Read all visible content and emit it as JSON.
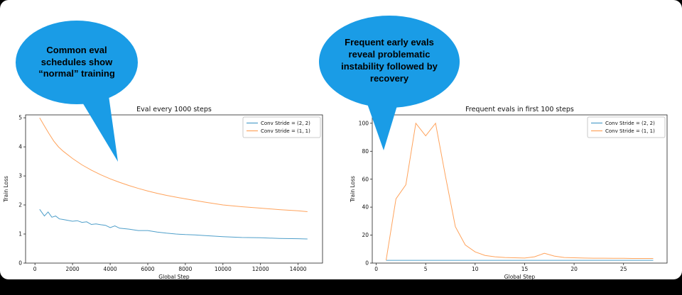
{
  "slide": {
    "background": "#000000",
    "surface": "#ffffff"
  },
  "bubbles": {
    "left": {
      "text": "Common eval schedules show “normal” training",
      "color": "#1a9ce6"
    },
    "right": {
      "text": "Frequent early evals reveal problematic instability followed by recovery",
      "color": "#1a9ce6"
    }
  },
  "chart_data": [
    {
      "type": "line",
      "title": "Eval every 1000 steps",
      "xlabel": "Global Step",
      "ylabel": "Train Loss",
      "xlim": [
        -500,
        15300
      ],
      "ylim": [
        0,
        5.1
      ],
      "xticks": [
        0,
        2000,
        4000,
        6000,
        8000,
        10000,
        12000,
        14000
      ],
      "yticks": [
        0,
        1,
        2,
        3,
        4,
        5
      ],
      "grid": false,
      "legend_position": "upper right",
      "series": [
        {
          "name": "Conv Stride =  (2, 2)",
          "color": "#4f9fca",
          "x": [
            250,
            500,
            700,
            900,
            1100,
            1300,
            1500,
            1750,
            2000,
            2250,
            2500,
            2750,
            3000,
            3250,
            3500,
            3750,
            4000,
            4250,
            4500,
            5000,
            5500,
            6000,
            6500,
            7000,
            7500,
            8000,
            8500,
            9000,
            10000,
            11000,
            12000,
            13000,
            14000,
            14500
          ],
          "y": [
            1.85,
            1.62,
            1.76,
            1.58,
            1.62,
            1.52,
            1.5,
            1.47,
            1.44,
            1.46,
            1.4,
            1.42,
            1.33,
            1.35,
            1.32,
            1.3,
            1.22,
            1.28,
            1.2,
            1.17,
            1.12,
            1.12,
            1.07,
            1.03,
            1.0,
            0.98,
            0.97,
            0.95,
            0.91,
            0.88,
            0.87,
            0.85,
            0.84,
            0.83
          ]
        },
        {
          "name": "Conv Stride =  (1, 1)",
          "color": "#ffa35c",
          "x": [
            250,
            500,
            750,
            1000,
            1250,
            1500,
            2000,
            2500,
            3000,
            3500,
            4000,
            4500,
            5000,
            5500,
            6000,
            6500,
            7000,
            7500,
            8000,
            9000,
            10000,
            11000,
            12000,
            13000,
            14000,
            14500
          ],
          "y": [
            5.0,
            4.72,
            4.45,
            4.2,
            4.0,
            3.85,
            3.6,
            3.38,
            3.2,
            3.04,
            2.9,
            2.78,
            2.67,
            2.57,
            2.48,
            2.4,
            2.33,
            2.27,
            2.21,
            2.1,
            2.0,
            1.94,
            1.89,
            1.84,
            1.8,
            1.77
          ]
        }
      ]
    },
    {
      "type": "line",
      "title": "Frequent evals in first 100 steps",
      "xlabel": "Global Step",
      "ylabel": "Train Loss",
      "xlim": [
        -0.4,
        29.4
      ],
      "ylim": [
        0,
        106
      ],
      "xticks": [
        0,
        5,
        10,
        15,
        20,
        25
      ],
      "yticks": [
        0,
        20,
        40,
        60,
        80,
        100
      ],
      "grid": false,
      "legend_position": "upper right",
      "series": [
        {
          "name": "Conv Stride =  (2, 2)",
          "color": "#4f9fca",
          "x": [
            1,
            2,
            4,
            6,
            8,
            10,
            12,
            14,
            16,
            18,
            20,
            22,
            24,
            26,
            28
          ],
          "y": [
            2,
            2,
            2,
            2,
            2,
            2,
            2,
            2,
            2,
            2,
            2,
            2,
            2,
            2,
            2
          ]
        },
        {
          "name": "Conv Stride =  (1, 1)",
          "color": "#ffa35c",
          "x": [
            1,
            2,
            3,
            4,
            5,
            6,
            7,
            8,
            9,
            10,
            11,
            12,
            13,
            14,
            15,
            16,
            17,
            18,
            19,
            20,
            21,
            22,
            23,
            24,
            25,
            26,
            27,
            28
          ],
          "y": [
            2,
            46,
            56,
            100,
            91,
            100,
            62,
            26,
            13,
            8,
            5.5,
            4.5,
            4,
            3.8,
            3.6,
            4.5,
            7,
            5,
            4,
            3.8,
            3.6,
            3.5,
            3.5,
            3.4,
            3.4,
            3.3,
            3.3,
            3.3
          ]
        }
      ]
    }
  ]
}
